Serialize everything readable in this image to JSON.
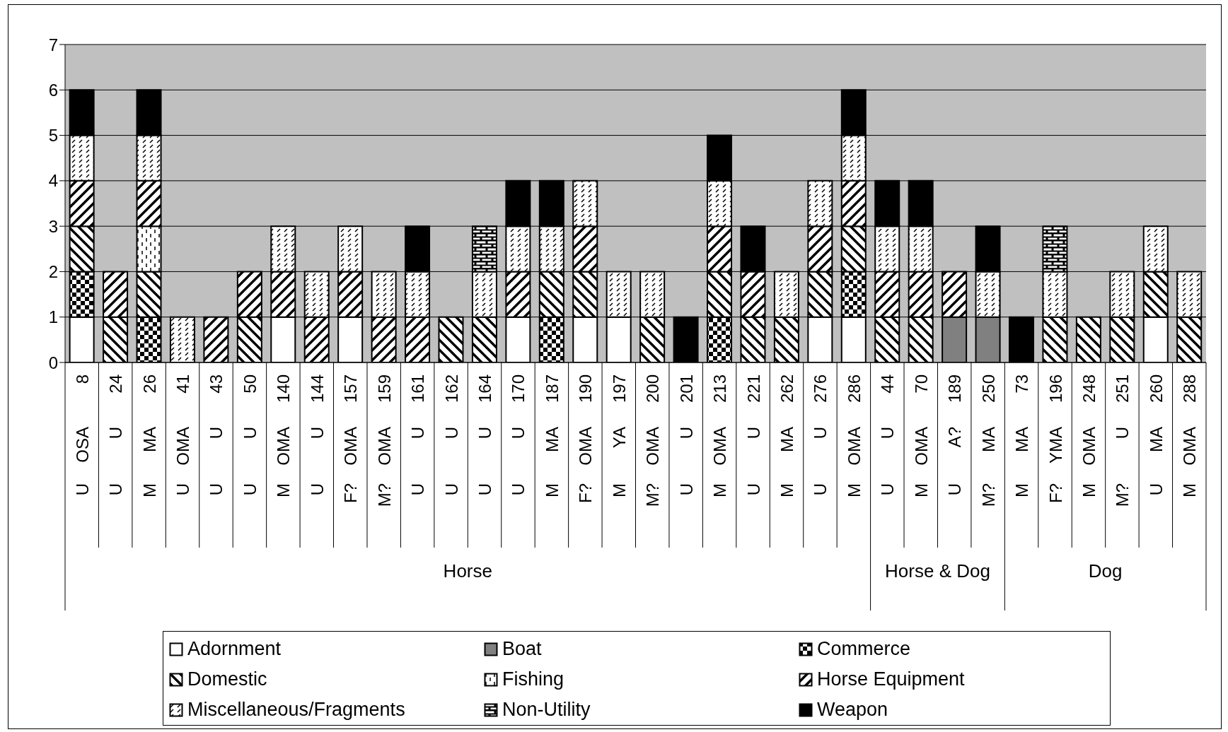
{
  "chart_data": {
    "type": "bar",
    "stacked": true,
    "categories": [
      "8\nOSA\nU",
      "24\nU\nU",
      "26\nMA\nM",
      "41\nOMA\nU",
      "43\nU\nU",
      "50\nU\nU",
      "140\nOMA\nM",
      "144\nU\nU",
      "157\nOMA\nF?",
      "159\nOMA\nM?",
      "161\nU\nU",
      "162\nU\nU",
      "164\nU\nU",
      "170\nU\nU",
      "187\nMA\nM",
      "190\nOMA\nF?",
      "197\nYA\nM",
      "200\nOMA\nM?",
      "201\nU\nU",
      "213\nOMA\nM",
      "221\nU\nU",
      "262\nMA\nM",
      "276\nU\nU",
      "286\nOMA\nM",
      "44\nU\nU",
      "70\nOMA\nM",
      "189\nA?\nU",
      "250\nMA\nM?",
      "73\nMA\nM",
      "196\nYMA\nF?",
      "248\nOMA\nM",
      "251\nU\nM?",
      "260\nMA\nU",
      "288\nOMA\nM"
    ],
    "annotations": [
      "Horse",
      "Horse & Dog",
      "Dog"
    ],
    "series": [
      {
        "name": "Adornment",
        "color": "#ffffff",
        "values": [
          1,
          null,
          null,
          null,
          null,
          null,
          1,
          null,
          1,
          null,
          null,
          null,
          null,
          1,
          null,
          1,
          1,
          null,
          null,
          null,
          null,
          null,
          1,
          1,
          null,
          null,
          null,
          null,
          null,
          null,
          null,
          null,
          1,
          null
        ]
      },
      {
        "name": "Boat",
        "color": "#808080",
        "values": [
          null,
          null,
          null,
          null,
          null,
          null,
          null,
          null,
          null,
          null,
          null,
          null,
          null,
          null,
          null,
          null,
          null,
          null,
          null,
          null,
          null,
          null,
          null,
          null,
          null,
          null,
          1,
          1,
          null,
          null,
          null,
          null,
          null,
          null
        ]
      },
      {
        "name": "Commerce",
        "color": "#000000",
        "values": [
          1,
          null,
          1,
          null,
          null,
          null,
          null,
          null,
          null,
          null,
          null,
          null,
          null,
          null,
          1,
          null,
          null,
          null,
          null,
          1,
          null,
          null,
          null,
          1,
          null,
          null,
          null,
          null,
          null,
          null,
          null,
          null,
          null,
          null
        ]
      },
      {
        "name": "Domestic",
        "color": "#000000",
        "values": [
          1,
          1,
          1,
          null,
          null,
          1,
          null,
          null,
          null,
          null,
          null,
          1,
          1,
          null,
          1,
          1,
          null,
          1,
          null,
          1,
          1,
          1,
          1,
          1,
          1,
          1,
          null,
          null,
          null,
          1,
          1,
          1,
          1,
          1
        ]
      },
      {
        "name": "Fishing",
        "color": "#000000",
        "values": [
          null,
          null,
          1,
          null,
          null,
          null,
          null,
          null,
          null,
          null,
          null,
          null,
          null,
          null,
          null,
          null,
          null,
          null,
          null,
          null,
          null,
          null,
          null,
          null,
          null,
          null,
          null,
          null,
          null,
          null,
          null,
          null,
          null,
          null
        ]
      },
      {
        "name": "Horse Equipment",
        "color": "#000000",
        "values": [
          1,
          1,
          1,
          null,
          1,
          1,
          1,
          1,
          1,
          1,
          1,
          null,
          null,
          1,
          null,
          1,
          null,
          null,
          null,
          1,
          1,
          null,
          1,
          1,
          1,
          1,
          1,
          null,
          null,
          null,
          null,
          null,
          null,
          null
        ]
      },
      {
        "name": "Miscellaneous/Fragments",
        "color": "#000000",
        "values": [
          1,
          null,
          1,
          1,
          null,
          null,
          1,
          1,
          1,
          1,
          1,
          null,
          1,
          1,
          1,
          1,
          1,
          1,
          null,
          1,
          null,
          1,
          1,
          1,
          1,
          1,
          null,
          1,
          null,
          1,
          null,
          1,
          1,
          1
        ]
      },
      {
        "name": "Non-Utility",
        "color": "#000000",
        "values": [
          null,
          null,
          null,
          null,
          null,
          null,
          null,
          null,
          null,
          null,
          null,
          null,
          1,
          null,
          null,
          null,
          null,
          null,
          null,
          null,
          null,
          null,
          null,
          null,
          null,
          null,
          null,
          null,
          null,
          1,
          null,
          null,
          null,
          null
        ]
      },
      {
        "name": "Weapon",
        "color": "#000000",
        "values": [
          1,
          null,
          1,
          null,
          null,
          null,
          null,
          null,
          null,
          null,
          1,
          null,
          null,
          1,
          1,
          null,
          null,
          null,
          1,
          1,
          1,
          null,
          null,
          1,
          1,
          1,
          null,
          1,
          1,
          null,
          null,
          null,
          null,
          null
        ]
      }
    ],
    "ylim": [
      0,
      7
    ],
    "yticks": [
      0,
      1,
      2,
      3,
      4,
      5,
      6,
      7
    ],
    "grid": "y",
    "legend": "bottom"
  }
}
